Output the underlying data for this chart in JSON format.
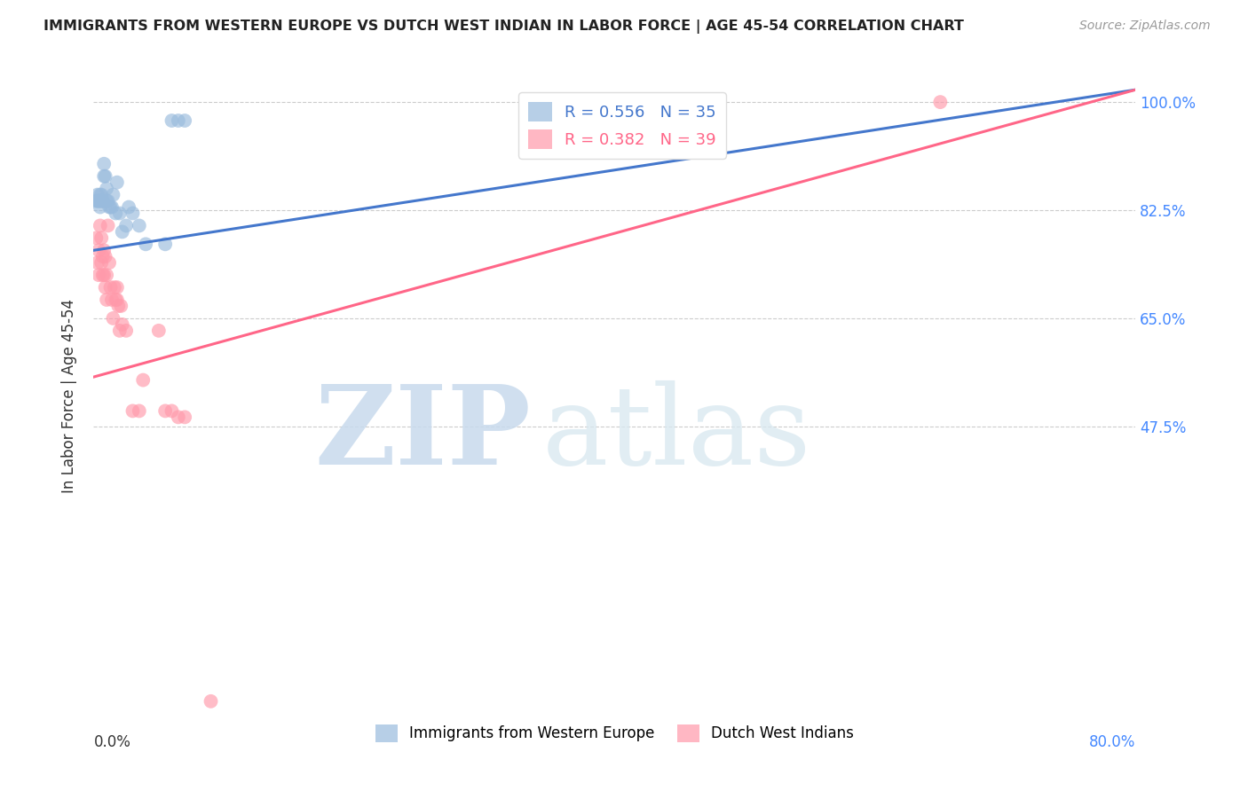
{
  "title": "IMMIGRANTS FROM WESTERN EUROPE VS DUTCH WEST INDIAN IN LABOR FORCE | AGE 45-54 CORRELATION CHART",
  "source": "Source: ZipAtlas.com",
  "ylabel": "In Labor Force | Age 45-54",
  "ytick_vals": [
    0.475,
    0.65,
    0.825,
    1.0
  ],
  "ytick_labels": [
    "47.5%",
    "65.0%",
    "82.5%",
    "100.0%"
  ],
  "xlim": [
    0.0,
    0.8
  ],
  "ylim": [
    0.0,
    1.05
  ],
  "blue_R": 0.556,
  "blue_N": 35,
  "pink_R": 0.382,
  "pink_N": 39,
  "blue_color": "#99BBDD",
  "pink_color": "#FF99AA",
  "blue_line_color": "#4477CC",
  "pink_line_color": "#FF6688",
  "blue_text_color": "#4477CC",
  "pink_text_color": "#FF6688",
  "legend1": "Immigrants from Western Europe",
  "legend2": "Dutch West Indians",
  "blue_scatter_x": [
    0.002,
    0.003,
    0.003,
    0.004,
    0.004,
    0.005,
    0.005,
    0.005,
    0.006,
    0.006,
    0.007,
    0.007,
    0.008,
    0.008,
    0.009,
    0.01,
    0.01,
    0.011,
    0.012,
    0.013,
    0.014,
    0.015,
    0.017,
    0.018,
    0.02,
    0.022,
    0.025,
    0.027,
    0.03,
    0.035,
    0.04,
    0.055,
    0.06,
    0.065,
    0.07
  ],
  "blue_scatter_y": [
    0.84,
    0.84,
    0.85,
    0.84,
    0.84,
    0.83,
    0.84,
    0.85,
    0.84,
    0.85,
    0.84,
    0.84,
    0.9,
    0.88,
    0.88,
    0.84,
    0.86,
    0.84,
    0.83,
    0.83,
    0.83,
    0.85,
    0.82,
    0.87,
    0.82,
    0.79,
    0.8,
    0.83,
    0.82,
    0.8,
    0.77,
    0.77,
    0.97,
    0.97,
    0.97
  ],
  "pink_scatter_x": [
    0.002,
    0.003,
    0.004,
    0.004,
    0.005,
    0.006,
    0.006,
    0.007,
    0.007,
    0.008,
    0.008,
    0.009,
    0.009,
    0.01,
    0.01,
    0.011,
    0.012,
    0.013,
    0.014,
    0.015,
    0.016,
    0.017,
    0.018,
    0.018,
    0.019,
    0.02,
    0.021,
    0.022,
    0.025,
    0.03,
    0.035,
    0.038,
    0.05,
    0.055,
    0.06,
    0.065,
    0.07,
    0.09,
    0.65
  ],
  "pink_scatter_y": [
    0.78,
    0.74,
    0.72,
    0.76,
    0.8,
    0.74,
    0.78,
    0.72,
    0.75,
    0.72,
    0.76,
    0.7,
    0.75,
    0.72,
    0.68,
    0.8,
    0.74,
    0.7,
    0.68,
    0.65,
    0.7,
    0.68,
    0.68,
    0.7,
    0.67,
    0.63,
    0.67,
    0.64,
    0.63,
    0.5,
    0.5,
    0.55,
    0.63,
    0.5,
    0.5,
    0.49,
    0.49,
    0.03,
    1.0
  ],
  "blue_line_x0": 0.0,
  "blue_line_y0": 0.76,
  "blue_line_x1": 0.8,
  "blue_line_y1": 1.02,
  "pink_line_x0": 0.0,
  "pink_line_y0": 0.555,
  "pink_line_x1": 0.8,
  "pink_line_y1": 1.02,
  "watermark_zip": "ZIP",
  "watermark_atlas": "atlas",
  "background_color": "#FFFFFF",
  "grid_color": "#CCCCCC"
}
